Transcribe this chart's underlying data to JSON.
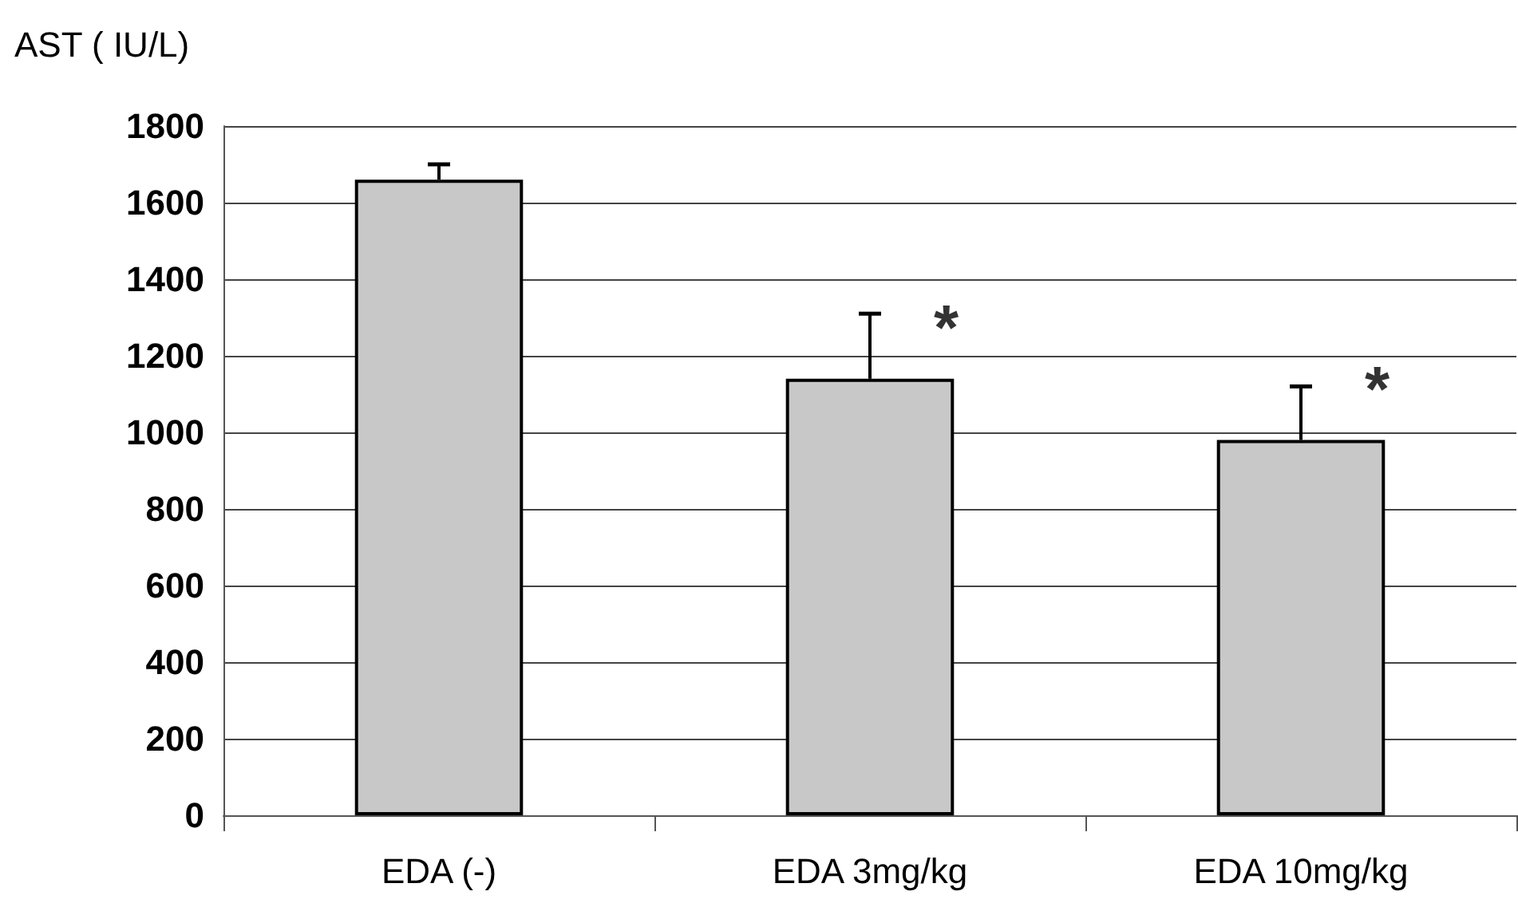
{
  "chart_data": {
    "type": "bar",
    "ylabel": "AST ( IU/L)",
    "categories": [
      "EDA (-)",
      "EDA 3mg/kg",
      "EDA 10mg/kg"
    ],
    "values": [
      1660,
      1140,
      980
    ],
    "color": "#c8c8c8",
    "errors": [
      [
        1660,
        1700
      ],
      [
        1140,
        1310
      ],
      [
        980,
        1120
      ]
    ],
    "ylim": [
      0,
      1800
    ],
    "yticks": [
      0,
      200,
      400,
      600,
      800,
      1000,
      1200,
      1400,
      1600,
      1800
    ],
    "grid": "y",
    "annotations": [
      {
        "text": "*",
        "x": "EDA 3mg/kg",
        "y": 1270
      },
      {
        "text": "*",
        "x": "EDA 10mg/kg",
        "y": 1110
      }
    ]
  }
}
